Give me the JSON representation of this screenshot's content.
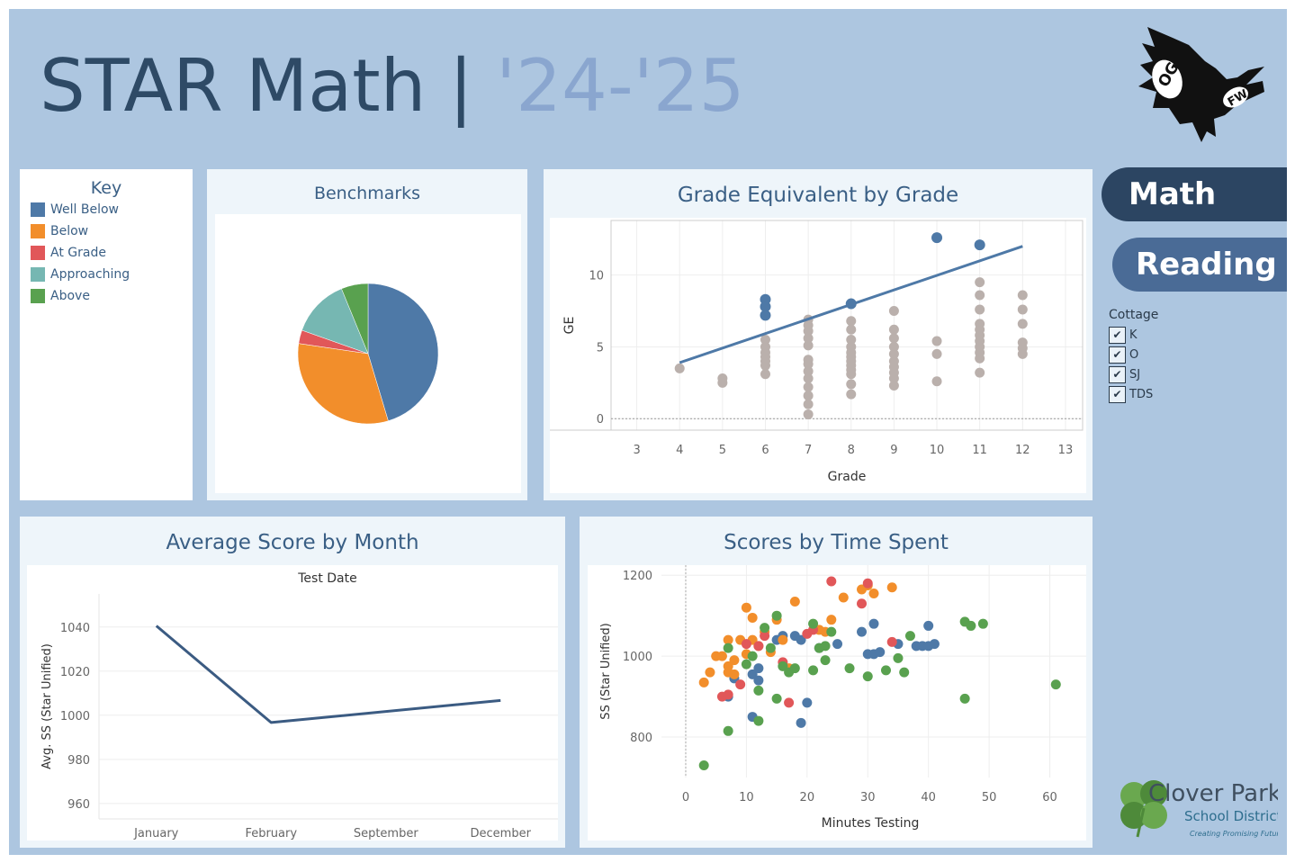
{
  "header": {
    "title_main": "STAR Math | ",
    "title_year": "'24-'25",
    "logo_text_1": "OG",
    "logo_text_2": "FW"
  },
  "key": {
    "title": "Key",
    "items": [
      {
        "label": "Well Below",
        "color": "#4e79a7"
      },
      {
        "label": "Below",
        "color": "#f28e2b"
      },
      {
        "label": "At Grade",
        "color": "#e15759"
      },
      {
        "label": "Approaching",
        "color": "#76b7b2"
      },
      {
        "label": "Above",
        "color": "#59a14f"
      }
    ]
  },
  "nav": {
    "math_label": "Math",
    "reading_label": "Reading"
  },
  "filter": {
    "title": "Cottage",
    "options": [
      {
        "label": "K",
        "checked": true
      },
      {
        "label": "O",
        "checked": true
      },
      {
        "label": "SJ",
        "checked": true
      },
      {
        "label": "TDS",
        "checked": true
      }
    ]
  },
  "footer_logo": {
    "name_1": "Clover Park",
    "name_2": "School District",
    "tagline": "Creating Promising Futures."
  },
  "chart_data": [
    {
      "id": "benchmarks",
      "type": "pie",
      "title": "Benchmarks",
      "slices": [
        {
          "label": "Well Below",
          "value": 44,
          "color": "#4e79a7"
        },
        {
          "label": "Below",
          "value": 31,
          "color": "#f28e2b"
        },
        {
          "label": "At Grade",
          "value": 3,
          "color": "#e15759"
        },
        {
          "label": "Approaching",
          "value": 13,
          "color": "#76b7b2"
        },
        {
          "label": "Above",
          "value": 6,
          "color": "#59a14f"
        }
      ]
    },
    {
      "id": "ge_by_grade",
      "type": "scatter",
      "title": "Grade Equivalent by Grade",
      "xlabel": "Grade",
      "ylabel": "GE",
      "xlim": [
        2.4,
        13.4
      ],
      "ylim": [
        -0.8,
        13.8
      ],
      "xticks": [
        "3",
        "4",
        "5",
        "6",
        "7",
        "8",
        "9",
        "10",
        "11",
        "12",
        "13"
      ],
      "yticks": [
        "0",
        "5",
        "10"
      ],
      "trend": {
        "x1": 4,
        "y1": 3.9,
        "x2": 12,
        "y2": 12.0,
        "color": "#4e79a7"
      },
      "reference_line_y": 0,
      "points": [
        [
          4,
          3.5
        ],
        [
          5,
          2.8
        ],
        [
          5,
          2.5
        ],
        [
          6,
          5.5
        ],
        [
          6,
          5.0
        ],
        [
          6,
          4.6
        ],
        [
          6,
          4.3
        ],
        [
          6,
          4.0
        ],
        [
          6,
          3.7
        ],
        [
          6,
          3.1
        ],
        [
          7,
          6.9
        ],
        [
          7,
          6.5
        ],
        [
          7,
          6.1
        ],
        [
          7,
          5.6
        ],
        [
          7,
          5.1
        ],
        [
          7,
          4.1
        ],
        [
          7,
          3.8
        ],
        [
          7,
          3.3
        ],
        [
          7,
          2.8
        ],
        [
          7,
          2.2
        ],
        [
          7,
          1.6
        ],
        [
          7,
          1.0
        ],
        [
          7,
          0.3
        ],
        [
          8,
          6.8
        ],
        [
          8,
          6.2
        ],
        [
          8,
          5.5
        ],
        [
          8,
          5.0
        ],
        [
          8,
          4.6
        ],
        [
          8,
          4.3
        ],
        [
          8,
          4.0
        ],
        [
          8,
          3.7
        ],
        [
          8,
          3.4
        ],
        [
          8,
          3.1
        ],
        [
          8,
          2.4
        ],
        [
          8,
          1.7
        ],
        [
          9,
          7.5
        ],
        [
          9,
          6.2
        ],
        [
          9,
          5.6
        ],
        [
          9,
          5.0
        ],
        [
          9,
          4.5
        ],
        [
          9,
          4.0
        ],
        [
          9,
          3.6
        ],
        [
          9,
          3.2
        ],
        [
          9,
          2.8
        ],
        [
          9,
          2.3
        ],
        [
          10,
          5.4
        ],
        [
          10,
          4.5
        ],
        [
          10,
          2.6
        ],
        [
          11,
          9.5
        ],
        [
          11,
          8.6
        ],
        [
          11,
          7.6
        ],
        [
          11,
          6.6
        ],
        [
          11,
          6.2
        ],
        [
          11,
          5.8
        ],
        [
          11,
          5.4
        ],
        [
          11,
          5.0
        ],
        [
          11,
          4.6
        ],
        [
          11,
          4.2
        ],
        [
          11,
          3.2
        ],
        [
          12,
          8.6
        ],
        [
          12,
          7.6
        ],
        [
          12,
          6.6
        ],
        [
          12,
          5.3
        ],
        [
          12,
          4.9
        ],
        [
          12,
          4.5
        ]
      ],
      "point_color": "#bab0ac",
      "highlight_points": [
        [
          6,
          8.3
        ],
        [
          6,
          7.8
        ],
        [
          6,
          7.2
        ],
        [
          8,
          8.0
        ],
        [
          10,
          12.6
        ],
        [
          11,
          12.1
        ]
      ],
      "highlight_color": "#4e79a7"
    },
    {
      "id": "avg_by_month",
      "type": "line",
      "title": "Average Score by Month",
      "header": "Test Date",
      "ylabel": "Avg. SS (Star Unified)",
      "categories": [
        "January",
        "February",
        "September",
        "December"
      ],
      "ylim": [
        953,
        1055
      ],
      "yticks": [
        "960",
        "980",
        "1000",
        "1020",
        "1040"
      ],
      "series": [
        {
          "values": [
            1040.5,
            996.7,
            null,
            1006.7
          ],
          "color": "#3b5b82"
        }
      ]
    },
    {
      "id": "scores_by_time",
      "type": "scatter",
      "title": "Scores by Time Spent",
      "xlabel": "Minutes Testing",
      "ylabel": "SS (Star Unified)",
      "xlim": [
        -4,
        66
      ],
      "ylim": [
        700,
        1225
      ],
      "xticks": [
        "0",
        "10",
        "20",
        "30",
        "40",
        "50",
        "60"
      ],
      "yticks": [
        "800",
        "1000",
        "1200"
      ],
      "groups": [
        {
          "name": "Well Below",
          "color": "#4e79a7",
          "points": [
            [
              7,
              900
            ],
            [
              8,
              945
            ],
            [
              11,
              955
            ],
            [
              11,
              850
            ],
            [
              12,
              970
            ],
            [
              12,
              940
            ],
            [
              15,
              1040
            ],
            [
              16,
              1050
            ],
            [
              18,
              1050
            ],
            [
              19,
              1040
            ],
            [
              19,
              835
            ],
            [
              20,
              885
            ],
            [
              22,
              1020
            ],
            [
              25,
              1030
            ],
            [
              29,
              1060
            ],
            [
              30,
              1005
            ],
            [
              31,
              1005
            ],
            [
              31,
              1080
            ],
            [
              32,
              1010
            ],
            [
              35,
              1030
            ],
            [
              38,
              1025
            ],
            [
              39,
              1025
            ],
            [
              40,
              1025
            ],
            [
              40,
              1075
            ],
            [
              41,
              1030
            ]
          ]
        },
        {
          "name": "Below",
          "color": "#f28e2b",
          "points": [
            [
              3,
              935
            ],
            [
              4,
              960
            ],
            [
              5,
              1000
            ],
            [
              6,
              1000
            ],
            [
              7,
              1040
            ],
            [
              7,
              975
            ],
            [
              7,
              960
            ],
            [
              8,
              990
            ],
            [
              8,
              955
            ],
            [
              9,
              1040
            ],
            [
              10,
              1120
            ],
            [
              10,
              1005
            ],
            [
              11,
              1095
            ],
            [
              11,
              1040
            ],
            [
              12,
              1025
            ],
            [
              13,
              1060
            ],
            [
              14,
              1010
            ],
            [
              15,
              1090
            ],
            [
              16,
              1040
            ],
            [
              17,
              970
            ],
            [
              18,
              1135
            ],
            [
              22,
              1065
            ],
            [
              23,
              1060
            ],
            [
              24,
              1090
            ],
            [
              26,
              1145
            ],
            [
              29,
              1165
            ],
            [
              30,
              1175
            ],
            [
              31,
              1155
            ],
            [
              34,
              1170
            ]
          ]
        },
        {
          "name": "At Grade",
          "color": "#e15759",
          "points": [
            [
              6,
              900
            ],
            [
              7,
              905
            ],
            [
              9,
              930
            ],
            [
              10,
              1030
            ],
            [
              12,
              1025
            ],
            [
              13,
              1050
            ],
            [
              16,
              985
            ],
            [
              17,
              885
            ],
            [
              20,
              1055
            ],
            [
              21,
              1065
            ],
            [
              24,
              1185
            ],
            [
              29,
              1130
            ],
            [
              30,
              1180
            ],
            [
              34,
              1035
            ]
          ]
        },
        {
          "name": "Above",
          "color": "#59a14f",
          "points": [
            [
              3,
              730
            ],
            [
              7,
              815
            ],
            [
              7,
              1020
            ],
            [
              10,
              980
            ],
            [
              11,
              1000
            ],
            [
              12,
              840
            ],
            [
              12,
              915
            ],
            [
              13,
              1070
            ],
            [
              14,
              1020
            ],
            [
              15,
              895
            ],
            [
              15,
              1100
            ],
            [
              16,
              975
            ],
            [
              17,
              960
            ],
            [
              18,
              970
            ],
            [
              21,
              965
            ],
            [
              21,
              1080
            ],
            [
              22,
              1020
            ],
            [
              23,
              1025
            ],
            [
              23,
              990
            ],
            [
              24,
              1060
            ],
            [
              27,
              970
            ],
            [
              30,
              950
            ],
            [
              33,
              965
            ],
            [
              35,
              995
            ],
            [
              36,
              960
            ],
            [
              37,
              1050
            ],
            [
              46,
              895
            ],
            [
              46,
              1085
            ],
            [
              47,
              1075
            ],
            [
              49,
              1080
            ],
            [
              61,
              930
            ]
          ]
        }
      ]
    }
  ]
}
